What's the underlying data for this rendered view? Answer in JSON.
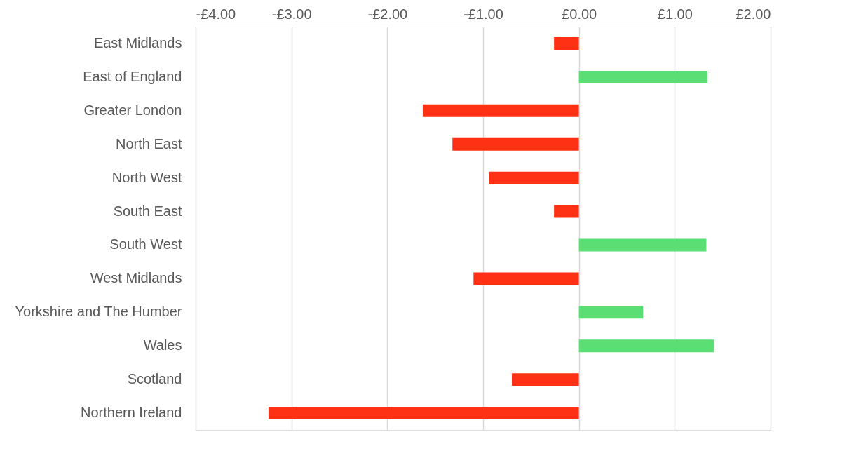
{
  "chart_data": {
    "type": "bar",
    "orientation": "horizontal",
    "categories": [
      "East Midlands",
      "East of England",
      "Greater London",
      "North East",
      "North West",
      "South East",
      "South West",
      "West Midlands",
      "Yorkshire and The Humber",
      "Wales",
      "Scotland",
      "Northern Ireland"
    ],
    "values": [
      -0.26,
      1.34,
      -1.63,
      -1.32,
      -0.94,
      -0.26,
      1.33,
      -1.1,
      0.67,
      1.41,
      -0.7,
      -3.24
    ],
    "colors": [
      "#ff3114",
      "#5bdf74",
      "#ff3114",
      "#ff3114",
      "#ff3114",
      "#ff3114",
      "#5bdf74",
      "#ff3114",
      "#5bdf74",
      "#5bdf74",
      "#ff3114",
      "#ff3114"
    ],
    "xlim": [
      -4,
      2
    ],
    "xticks": [
      {
        "value": -4,
        "label": "-£4.00"
      },
      {
        "value": -3,
        "label": "-£3.00"
      },
      {
        "value": -2,
        "label": "-£2.00"
      },
      {
        "value": -1,
        "label": "-£1.00"
      },
      {
        "value": 0,
        "label": "£0.00"
      },
      {
        "value": 1,
        "label": "£1.00"
      },
      {
        "value": 2,
        "label": "£2.00"
      }
    ],
    "grid": "x"
  }
}
